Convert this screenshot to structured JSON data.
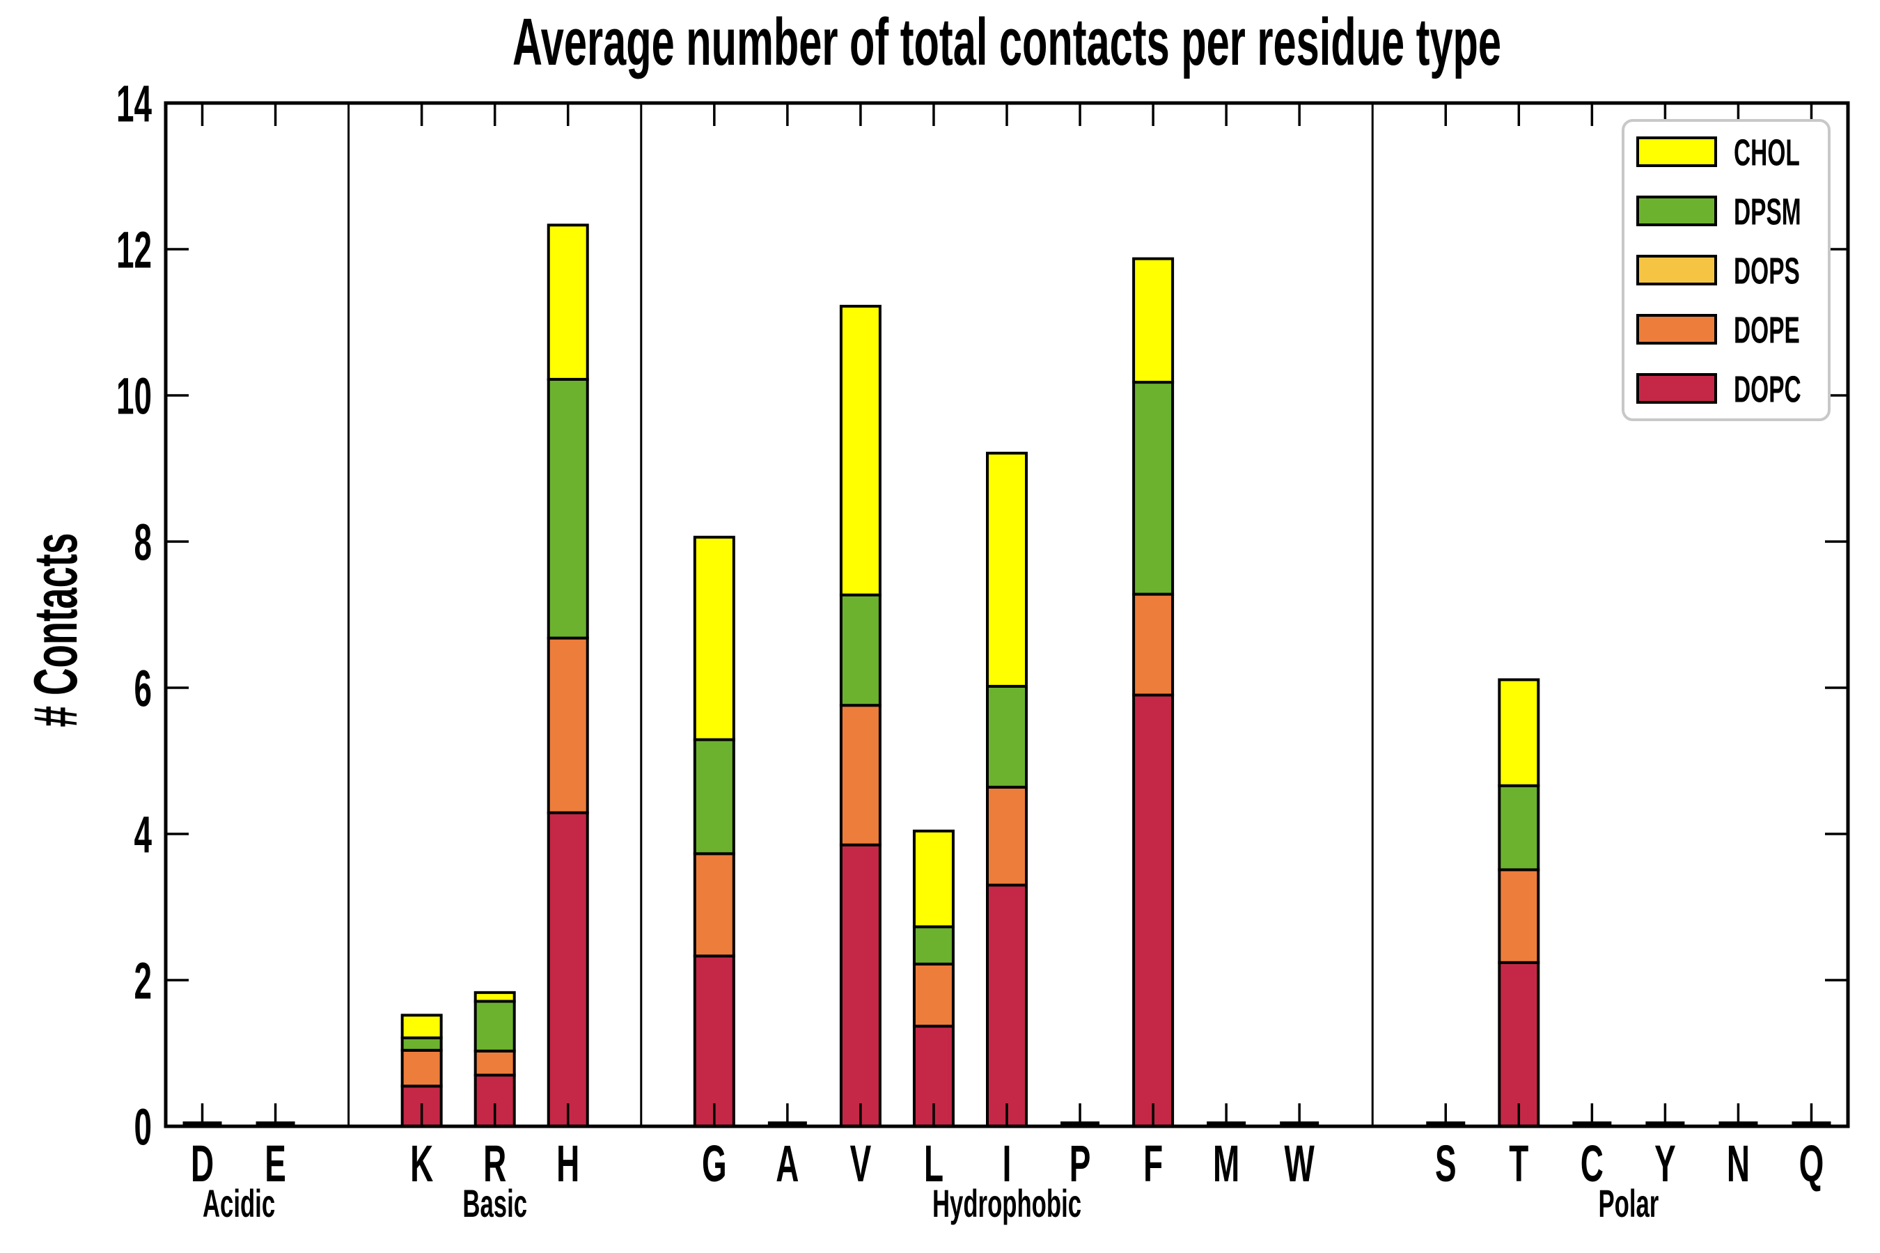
{
  "chart_data": {
    "type": "bar",
    "stacked": true,
    "title": "Average number of total contacts per residue type",
    "xlabel": "",
    "ylabel": "# Contacts",
    "ylim": [
      0,
      14
    ],
    "yticks": [
      0,
      2,
      4,
      6,
      8,
      10,
      12,
      14
    ],
    "grid": false,
    "legend_position": "upper right",
    "categories": [
      "D",
      "E",
      "K",
      "R",
      "H",
      "G",
      "A",
      "V",
      "L",
      "I",
      "P",
      "F",
      "M",
      "W",
      "S",
      "T",
      "C",
      "Y",
      "N",
      "Q"
    ],
    "slot_layout": [
      "D",
      "E",
      "|",
      "K",
      "R",
      "H",
      "|",
      "G",
      "A",
      "V",
      "L",
      "I",
      "P",
      "F",
      "M",
      "W",
      "|",
      "S",
      "T",
      "C",
      "Y",
      "N",
      "Q"
    ],
    "groups": [
      {
        "label": "Acidic",
        "members": [
          "D",
          "E"
        ]
      },
      {
        "label": "Basic",
        "members": [
          "K",
          "R",
          "H"
        ]
      },
      {
        "label": "Hydrophobic",
        "members": [
          "G",
          "A",
          "V",
          "L",
          "I",
          "P",
          "F",
          "M",
          "W"
        ]
      },
      {
        "label": "Polar",
        "members": [
          "S",
          "T",
          "C",
          "Y",
          "N",
          "Q"
        ]
      }
    ],
    "series": [
      {
        "name": "DOPC",
        "color": "#C52846",
        "values": [
          0,
          0,
          0.55,
          0.7,
          4.29,
          2.33,
          0,
          3.85,
          1.37,
          3.3,
          0,
          5.9,
          0,
          0,
          0,
          2.24,
          0,
          0,
          0,
          0
        ]
      },
      {
        "name": "DOPE",
        "color": "#ED7D3B",
        "values": [
          0,
          0,
          0.49,
          0.33,
          2.39,
          1.4,
          0,
          1.91,
          0.85,
          1.34,
          0,
          1.38,
          0,
          0,
          0,
          1.27,
          0,
          0,
          0,
          0
        ]
      },
      {
        "name": "DOPS",
        "color": "#F6C443",
        "values": [
          0,
          0,
          0,
          0,
          0,
          0,
          0,
          0,
          0,
          0,
          0,
          0,
          0,
          0,
          0,
          0,
          0,
          0,
          0,
          0
        ]
      },
      {
        "name": "DPSM",
        "color": "#6CB22F",
        "values": [
          0,
          0,
          0.17,
          0.68,
          3.54,
          1.56,
          0,
          1.51,
          0.51,
          1.38,
          0,
          2.9,
          0,
          0,
          0,
          1.15,
          0,
          0,
          0,
          0
        ]
      },
      {
        "name": "CHOL",
        "color": "#FFFF00",
        "values": [
          0,
          0,
          0.31,
          0.12,
          2.11,
          2.77,
          0,
          3.95,
          1.31,
          3.19,
          0,
          1.69,
          0,
          0,
          0,
          1.45,
          0,
          0,
          0,
          0
        ]
      }
    ],
    "bar_totals_note": "totals: K 1.52, R 1.83, H 12.33, G 8.06, V 11.22, L 4.04, I 9.21, F 11.87, T 6.11"
  },
  "colors": {
    "axis": "#000000",
    "background": "#ffffff",
    "legend_border": "#c8c8c8"
  }
}
